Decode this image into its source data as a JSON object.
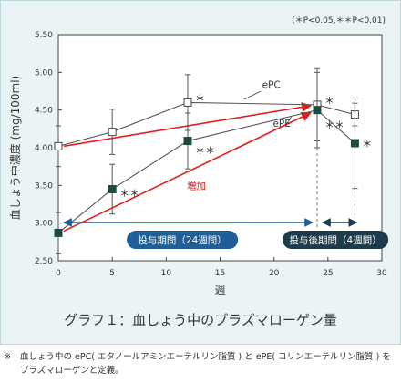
{
  "chart_data": {
    "type": "line",
    "significance_note": "(＊P<0.05,＊＊P<0.01)",
    "ylabel": "血しょう中濃度 (mg/100ml)",
    "xlabel": "週",
    "xlim": [
      0,
      30
    ],
    "ylim": [
      2.5,
      5.5
    ],
    "x_ticks": [
      0,
      5,
      10,
      15,
      20,
      25,
      30
    ],
    "y_ticks": [
      "2.50",
      "3.00",
      "3.50",
      "4.00",
      "4.50",
      "5.00",
      "5.50"
    ],
    "grid": false,
    "series": [
      {
        "name": "ePC",
        "marker": "open-square",
        "x": [
          0,
          5,
          12,
          24,
          27.5
        ],
        "y": [
          4.02,
          4.21,
          4.6,
          4.57,
          4.44
        ],
        "err": [
          0.27,
          0.3,
          0.37,
          0.48,
          0.15
        ],
        "sig": [
          "",
          "",
          "*",
          "*",
          ""
        ]
      },
      {
        "name": "ePE",
        "marker": "filled-square",
        "x": [
          0,
          5,
          12,
          24,
          27.5
        ],
        "y": [
          2.87,
          3.45,
          4.09,
          4.5,
          4.06
        ],
        "err": [
          0.27,
          0.33,
          0.37,
          0.5,
          0.6
        ],
        "sig": [
          "",
          "**",
          "**",
          "**",
          "*"
        ]
      }
    ],
    "increase_label": "増加",
    "increase_color": "#e01e1e",
    "periods": [
      {
        "label": "投与期間（24週間）",
        "x_start": 0,
        "x_end": 24,
        "color": "#1f5e96"
      },
      {
        "label": "投与後期間（4週間）",
        "x_start": 24,
        "x_end": 28,
        "color": "#1d3b4a"
      }
    ]
  },
  "caption": "グラフ１：血しょう中のプラズマローゲン量",
  "footnote": {
    "mark": "※",
    "line1": "血しょう中の ePC( エタノールアミンエーテルリン脂質 ) と ePE( コリンエーテルリン脂質 ) を",
    "line2": "プラズマローゲンと定義。"
  }
}
